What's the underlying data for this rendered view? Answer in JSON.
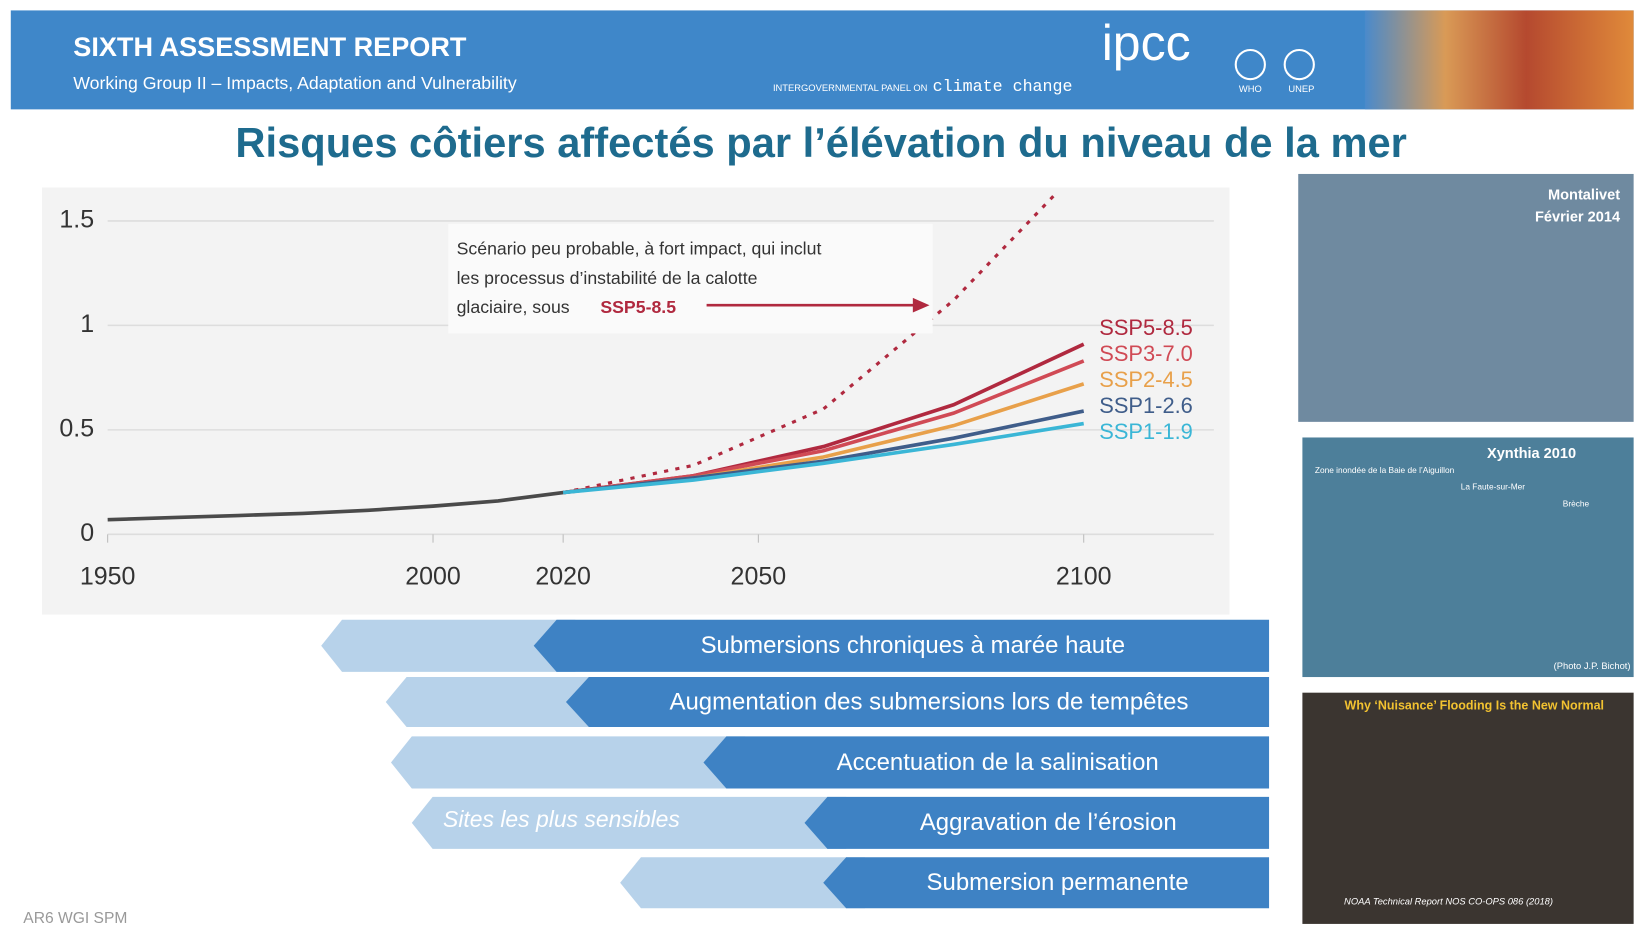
{
  "header": {
    "title": "SIXTH ASSESSMENT REPORT",
    "subtitle": "Working Group II – Impacts, Adaptation and Vulnerability",
    "logo": "ipcc",
    "logo_tagline_1": "INTERGOVERNMENTAL PANEL ON",
    "logo_tagline_2": "climate change",
    "org_1": "WHO",
    "org_2": "UNEP"
  },
  "title": "Risques côtiers affectés par l’élévation du niveau de la mer",
  "chart_data": {
    "type": "line",
    "xlim": [
      1950,
      2120
    ],
    "ylim": [
      -0.04,
      1.65
    ],
    "xticks": [
      1950,
      2000,
      2020,
      2050,
      2100
    ],
    "yticks": [
      0,
      0.5,
      1,
      1.5
    ],
    "grid": true,
    "annotation": {
      "lines": [
        "Scénario peu probable, à fort impact, qui inclut",
        "les processus d’instabilité de la calotte",
        "glaciaire, sous "
      ],
      "highlight": "SSP5-8.5"
    },
    "series": [
      {
        "color": "#4a4a4a",
        "x": [
          1950,
          1960,
          1970,
          1980,
          1990,
          2000,
          2010,
          2020
        ],
        "values": [
          0.07,
          0.08,
          0.09,
          0.1,
          0.115,
          0.135,
          0.16,
          0.2
        ]
      },
      {
        "color": "#b0293f",
        "dashed": true,
        "x": [
          2020,
          2040,
          2060,
          2080,
          2096
        ],
        "values": [
          0.2,
          0.33,
          0.6,
          1.12,
          1.64
        ]
      },
      {
        "name": "SSP5-8.5",
        "color": "#b0293f",
        "x": [
          2020,
          2040,
          2060,
          2080,
          2100
        ],
        "values": [
          0.2,
          0.28,
          0.42,
          0.62,
          0.91
        ]
      },
      {
        "name": "SSP3-7.0",
        "color": "#d04a55",
        "x": [
          2020,
          2040,
          2060,
          2080,
          2100
        ],
        "values": [
          0.2,
          0.28,
          0.4,
          0.58,
          0.83
        ]
      },
      {
        "name": "SSP2-4.5",
        "color": "#e8a04a",
        "x": [
          2020,
          2040,
          2060,
          2080,
          2100
        ],
        "values": [
          0.2,
          0.27,
          0.37,
          0.52,
          0.72
        ]
      },
      {
        "name": "SSP1-2.6",
        "color": "#3f5d8a",
        "x": [
          2020,
          2040,
          2060,
          2080,
          2100
        ],
        "values": [
          0.2,
          0.27,
          0.35,
          0.46,
          0.59
        ]
      },
      {
        "name": "SSP1-1.9",
        "color": "#3ab6d6",
        "x": [
          2020,
          2040,
          2060,
          2080,
          2100
        ],
        "values": [
          0.2,
          0.26,
          0.34,
          0.43,
          0.53
        ]
      }
    ]
  },
  "risks": [
    {
      "label": "Submersions chroniques à marée haute"
    },
    {
      "label": "Augmentation des submersions lors de tempêtes"
    },
    {
      "label": "Accentuation de la salinisation"
    },
    {
      "label": "Aggravation de l’érosion",
      "note": "Sites les plus sensibles"
    },
    {
      "label": "Submersion permanente"
    }
  ],
  "photos": [
    {
      "caption": [
        "Montalivet",
        "Février 2014"
      ]
    },
    {
      "caption": [
        "Xynthia 2010",
        "Zone inondée de la Baie de l’Aiguillon",
        "La Faute-sur-Mer",
        "Brèche",
        "(Photo J.P. Bichot)"
      ]
    },
    {
      "caption": [
        "Why ‘Nuisance’ Flooding Is the New Normal",
        "NOAA Technical Report NOS CO-OPS 086 (2018)"
      ]
    }
  ],
  "footer": "AR6 WGI SPM"
}
